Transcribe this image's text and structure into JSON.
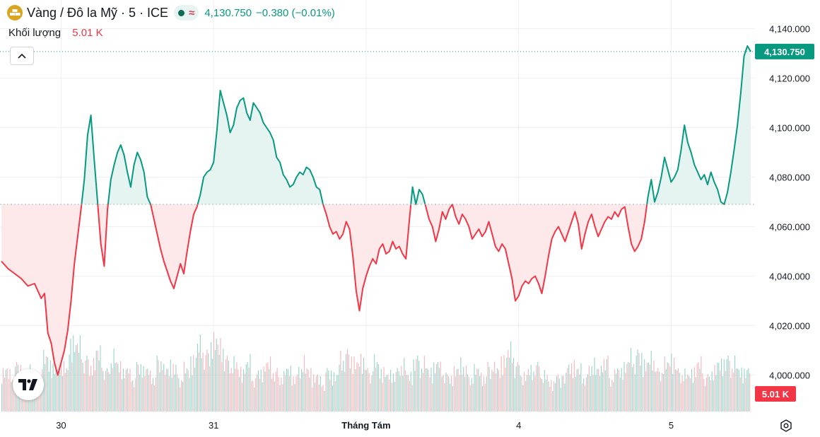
{
  "header": {
    "symbol_icon": "gold-bars-icon",
    "title": "Vàng / Đô la Mỹ · 5 · ICE",
    "status_icons": [
      "market-open-dot-icon",
      "delayed-data-wave-icon"
    ],
    "wave_glyph": "≈",
    "price": "4,130.750",
    "change": "−0.380 (−0.01%)"
  },
  "volume_legend": {
    "label": "Khối lượng",
    "value": "5.01 K"
  },
  "colors": {
    "up": "#089981",
    "down": "#f23645",
    "up_fill": "#e6f4f1",
    "down_fill": "#fde8ea",
    "vol_up": "#86cbc0",
    "vol_down": "#f3a8af",
    "grid": "#eef0f3",
    "icon_gold": "#d9a520"
  },
  "chart_data": {
    "type": "line",
    "style": "baseline",
    "title": "",
    "xlabel": "",
    "ylabel": "",
    "ylim": [
      3999,
      4143
    ],
    "baseline": 4069,
    "y_ticks": [
      4000,
      4020,
      4040,
      4060,
      4080,
      4100,
      4120,
      4140
    ],
    "y_tick_labels": [
      "4,000.000",
      "4,020.000",
      "4,040.000",
      "4,060.000",
      "4,080.000",
      "4,100.000",
      "4,120.000",
      "4,140.000"
    ],
    "x_ticks": [
      "30",
      "31",
      "Tháng Tám",
      "4",
      "5"
    ],
    "x_tick_positions": [
      7,
      30,
      53,
      76,
      99
    ],
    "x_range": [
      -2,
      111
    ],
    "grid": true,
    "last_price": 4130.75,
    "last_price_label": "4,130.750",
    "volume_last_label": "5.01 K",
    "series": [
      {
        "points": [
          [
            -2,
            4046
          ],
          [
            -1,
            4043
          ],
          [
            0,
            4041
          ],
          [
            1,
            4039
          ],
          [
            2,
            4036
          ],
          [
            3,
            4037
          ],
          [
            4,
            4031
          ],
          [
            4.5,
            4033
          ],
          [
            5,
            4017
          ],
          [
            5.5,
            4013
          ],
          [
            6,
            4005
          ],
          [
            6.5,
            4000
          ],
          [
            7,
            4005
          ],
          [
            7.5,
            4010
          ],
          [
            8,
            4018
          ],
          [
            8.5,
            4030
          ],
          [
            9,
            4045
          ],
          [
            9.5,
            4056
          ],
          [
            10,
            4067
          ],
          [
            10.5,
            4079
          ],
          [
            11,
            4097
          ],
          [
            11.5,
            4105
          ],
          [
            12,
            4087
          ],
          [
            12.5,
            4070
          ],
          [
            13,
            4053
          ],
          [
            13.5,
            4044
          ],
          [
            14,
            4067
          ],
          [
            14.5,
            4079
          ],
          [
            15,
            4085
          ],
          [
            15.5,
            4090
          ],
          [
            16,
            4093
          ],
          [
            16.5,
            4089
          ],
          [
            17,
            4082
          ],
          [
            17.5,
            4076
          ],
          [
            18,
            4085
          ],
          [
            18.5,
            4090
          ],
          [
            19,
            4087
          ],
          [
            19.5,
            4082
          ],
          [
            20,
            4072
          ],
          [
            20.5,
            4069
          ],
          [
            21,
            4063
          ],
          [
            21.5,
            4057
          ],
          [
            22,
            4051
          ],
          [
            22.5,
            4046
          ],
          [
            23,
            4042
          ],
          [
            23.5,
            4038
          ],
          [
            24,
            4035
          ],
          [
            24.5,
            4040
          ],
          [
            25,
            4045
          ],
          [
            25.5,
            4041
          ],
          [
            26,
            4050
          ],
          [
            26.5,
            4058
          ],
          [
            27,
            4065
          ],
          [
            27.5,
            4068
          ],
          [
            28,
            4073
          ],
          [
            28.5,
            4080
          ],
          [
            29,
            4082
          ],
          [
            29.5,
            4083
          ],
          [
            30,
            4086
          ],
          [
            30.5,
            4099
          ],
          [
            31,
            4115
          ],
          [
            31.5,
            4110
          ],
          [
            32,
            4105
          ],
          [
            32.5,
            4098
          ],
          [
            33,
            4101
          ],
          [
            33.5,
            4108
          ],
          [
            34,
            4111
          ],
          [
            34.5,
            4112
          ],
          [
            35,
            4106
          ],
          [
            35.5,
            4103
          ],
          [
            36,
            4110
          ],
          [
            36.5,
            4108
          ],
          [
            37,
            4106
          ],
          [
            37.5,
            4102
          ],
          [
            38,
            4100
          ],
          [
            38.5,
            4098
          ],
          [
            39,
            4095
          ],
          [
            39.5,
            4088
          ],
          [
            40,
            4086
          ],
          [
            40.5,
            4081
          ],
          [
            41,
            4079
          ],
          [
            41.5,
            4076
          ],
          [
            42,
            4077
          ],
          [
            42.5,
            4080
          ],
          [
            43,
            4082
          ],
          [
            43.5,
            4081
          ],
          [
            44,
            4084
          ],
          [
            44.5,
            4083
          ],
          [
            45,
            4080
          ],
          [
            45.5,
            4076
          ],
          [
            46,
            4075
          ],
          [
            46.5,
            4069
          ],
          [
            47,
            4065
          ],
          [
            47.5,
            4060
          ],
          [
            48,
            4057
          ],
          [
            48.5,
            4058
          ],
          [
            49,
            4055
          ],
          [
            49.5,
            4057
          ],
          [
            50,
            4062
          ],
          [
            50.5,
            4059
          ],
          [
            51,
            4048
          ],
          [
            51.5,
            4034
          ],
          [
            52,
            4026
          ],
          [
            52.5,
            4035
          ],
          [
            53,
            4040
          ],
          [
            53.5,
            4044
          ],
          [
            54,
            4047
          ],
          [
            54.5,
            4045
          ],
          [
            55,
            4051
          ],
          [
            55.5,
            4053
          ],
          [
            56,
            4049
          ],
          [
            56.5,
            4050
          ],
          [
            57,
            4054
          ],
          [
            57.5,
            4051
          ],
          [
            58,
            4052
          ],
          [
            58.5,
            4049
          ],
          [
            59,
            4047
          ],
          [
            59.5,
            4062
          ],
          [
            60,
            4076
          ],
          [
            60.5,
            4069
          ],
          [
            61,
            4075
          ],
          [
            61.5,
            4073
          ],
          [
            62,
            4068
          ],
          [
            62.5,
            4063
          ],
          [
            63,
            4060
          ],
          [
            63.5,
            4054
          ],
          [
            64,
            4059
          ],
          [
            64.5,
            4066
          ],
          [
            65,
            4063
          ],
          [
            65.5,
            4067
          ],
          [
            66,
            4069
          ],
          [
            66.5,
            4064
          ],
          [
            67,
            4061
          ],
          [
            67.5,
            4065
          ],
          [
            68,
            4063
          ],
          [
            68.5,
            4060
          ],
          [
            69,
            4055
          ],
          [
            69.5,
            4057
          ],
          [
            70,
            4059
          ],
          [
            70.5,
            4056
          ],
          [
            71,
            4058
          ],
          [
            71.5,
            4062
          ],
          [
            72,
            4057
          ],
          [
            72.5,
            4052
          ],
          [
            73,
            4050
          ],
          [
            73.5,
            4053
          ],
          [
            74,
            4051
          ],
          [
            74.5,
            4045
          ],
          [
            75,
            4039
          ],
          [
            75.5,
            4030
          ],
          [
            76,
            4032
          ],
          [
            76.5,
            4036
          ],
          [
            77,
            4038
          ],
          [
            77.5,
            4037
          ],
          [
            78,
            4039
          ],
          [
            78.5,
            4040
          ],
          [
            79,
            4037
          ],
          [
            79.5,
            4033
          ],
          [
            80,
            4040
          ],
          [
            80.5,
            4048
          ],
          [
            81,
            4055
          ],
          [
            81.5,
            4058
          ],
          [
            82,
            4060
          ],
          [
            82.5,
            4057
          ],
          [
            83,
            4054
          ],
          [
            83.5,
            4058
          ],
          [
            84,
            4062
          ],
          [
            84.5,
            4066
          ],
          [
            85,
            4061
          ],
          [
            85.5,
            4051
          ],
          [
            86,
            4057
          ],
          [
            86.5,
            4062
          ],
          [
            87,
            4065
          ],
          [
            87.5,
            4060
          ],
          [
            88,
            4056
          ],
          [
            88.5,
            4059
          ],
          [
            89,
            4062
          ],
          [
            89.5,
            4064
          ],
          [
            90,
            4063
          ],
          [
            90.5,
            4066
          ],
          [
            91,
            4064
          ],
          [
            91.5,
            4067
          ],
          [
            92,
            4068
          ],
          [
            92.5,
            4060
          ],
          [
            93,
            4053
          ],
          [
            93.5,
            4050
          ],
          [
            94,
            4052
          ],
          [
            94.5,
            4055
          ],
          [
            95,
            4062
          ],
          [
            95.5,
            4072
          ],
          [
            96,
            4079
          ],
          [
            96.5,
            4070
          ],
          [
            97,
            4074
          ],
          [
            97.5,
            4080
          ],
          [
            98,
            4088
          ],
          [
            98.5,
            4083
          ],
          [
            99,
            4078
          ],
          [
            99.5,
            4080
          ],
          [
            100,
            4083
          ],
          [
            100.5,
            4091
          ],
          [
            101,
            4101
          ],
          [
            101.5,
            4094
          ],
          [
            102,
            4090
          ],
          [
            102.5,
            4085
          ],
          [
            103,
            4082
          ],
          [
            103.5,
            4079
          ],
          [
            104,
            4081
          ],
          [
            104.5,
            4077
          ],
          [
            105,
            4082
          ],
          [
            105.5,
            4078
          ],
          [
            106,
            4075
          ],
          [
            106.5,
            4070
          ],
          [
            107,
            4069
          ],
          [
            107.5,
            4074
          ],
          [
            108,
            4082
          ],
          [
            108.5,
            4091
          ],
          [
            109,
            4101
          ],
          [
            109.5,
            4114
          ],
          [
            110,
            4129
          ],
          [
            110.5,
            4133
          ],
          [
            111,
            4130.75
          ]
        ]
      }
    ],
    "volume": {
      "min": 0,
      "max": 12,
      "values": [
        7,
        6,
        8,
        5,
        7,
        6,
        9,
        8,
        10,
        7,
        12,
        11,
        9,
        8,
        10,
        7,
        9,
        8,
        7,
        6,
        8,
        7,
        6,
        9,
        7,
        8,
        6,
        7,
        9,
        11,
        10,
        12,
        11,
        9,
        8,
        7,
        8,
        6,
        7,
        8,
        7,
        6,
        7,
        6,
        8,
        7,
        6,
        5,
        7,
        6,
        9,
        10,
        8,
        9,
        7,
        8,
        7,
        6,
        7,
        8,
        6,
        9,
        8,
        7,
        8,
        7,
        6,
        7,
        8,
        6,
        7,
        6,
        8,
        7,
        9,
        10,
        8,
        6,
        7,
        8,
        6,
        5,
        6,
        7,
        8,
        7,
        6,
        8,
        7,
        9,
        6,
        7,
        8,
        9,
        10,
        8,
        9,
        7,
        8,
        9,
        7,
        6,
        7,
        8,
        6,
        7,
        8,
        9,
        8,
        7,
        7
      ],
      "directions": [
        0,
        0,
        1,
        0,
        1,
        0,
        1,
        1,
        1,
        0,
        1,
        1,
        0,
        0,
        1,
        0,
        1,
        0,
        0,
        0,
        1,
        0,
        0,
        1,
        0,
        1,
        0,
        1,
        1,
        1,
        0,
        1,
        0,
        0,
        0,
        0,
        1,
        0,
        1,
        0,
        0,
        0,
        1,
        0,
        1,
        0,
        0,
        0,
        1,
        1,
        1,
        0,
        0,
        1,
        0,
        1,
        0,
        0,
        1,
        1,
        0,
        1,
        0,
        0,
        1,
        0,
        1,
        0,
        1,
        0,
        1,
        0,
        1,
        0,
        0,
        1,
        1,
        0,
        1,
        0,
        1,
        0,
        1,
        1,
        0,
        1,
        0,
        1,
        1,
        1,
        0,
        1,
        0,
        1,
        1,
        0,
        1,
        0,
        1,
        1,
        0,
        0,
        1,
        0,
        0,
        1,
        1,
        1,
        0,
        1,
        1
      ]
    }
  }
}
